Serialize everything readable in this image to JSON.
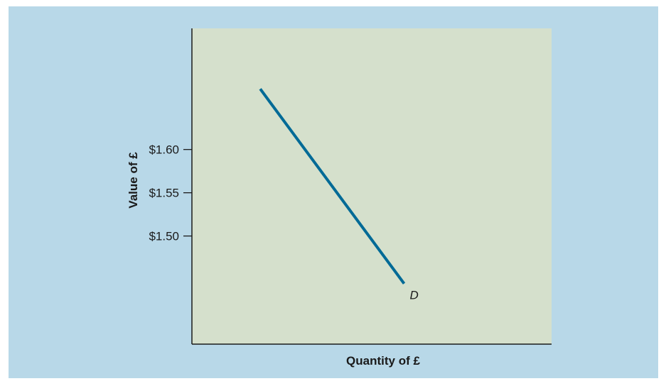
{
  "chart_data": {
    "type": "line",
    "title": "",
    "xlabel": "Quantity of £",
    "ylabel": "Value of £",
    "ylim": [
      1.375,
      1.74
    ],
    "xlim": [
      0,
      10
    ],
    "y_ticks": [
      {
        "value": 1.6,
        "label": "$1.60"
      },
      {
        "value": 1.55,
        "label": "$1.55"
      },
      {
        "value": 1.5,
        "label": "$1.50"
      }
    ],
    "series": [
      {
        "name": "D",
        "points": [
          {
            "x": 1.9,
            "y": 1.67
          },
          {
            "x": 5.9,
            "y": 1.445
          }
        ]
      }
    ],
    "grid": false,
    "colors": {
      "background": "#b8d8e8",
      "plot_area": "#d5e0cc",
      "line": "#006a96",
      "axis": "#1a1a1a"
    }
  }
}
